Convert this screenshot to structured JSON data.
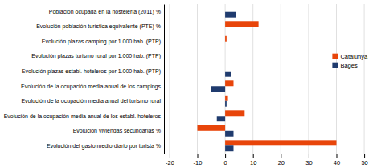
{
  "chart_data": {
    "type": "bar",
    "orientation": "horizontal",
    "categories": [
      "Población ocupada en la hostelería (2011)  %",
      "Evolución población turística equivalente (PTE)  %",
      "Evolución plazas camping por 1.000 hab. (PTP)",
      "Evolución plazas turismo rural por 1.000 hab. (PTP)",
      "Evolución plazas establ. hoteleros por 1.000 hab. (PTP)",
      "Evolución de la ocupación media anual de los campings",
      "Evolución de la ocupación media anual del turismo rural",
      "Evolución de la ocupación media anual de los establ. hoteleros",
      "Evolución viviendas secundarias  %",
      "Evolución del gasto medio diario por turista  %"
    ],
    "series": [
      {
        "name": "Catalunya",
        "color": "#E8450A",
        "values": [
          0.0,
          12.0,
          0.5,
          0.0,
          0.0,
          3.0,
          1.0,
          7.0,
          -10.0,
          40.0
        ]
      },
      {
        "name": "Bages",
        "color": "#1F3B6E",
        "values": [
          4.0,
          0.0,
          0.0,
          0.0,
          2.0,
          -5.0,
          0.5,
          -3.0,
          3.0,
          3.0
        ]
      }
    ],
    "xlim": [
      -22,
      52
    ],
    "xticks": [
      -20,
      -10,
      0,
      10,
      20,
      30,
      40,
      50
    ],
    "grid": true,
    "legend": "right"
  }
}
